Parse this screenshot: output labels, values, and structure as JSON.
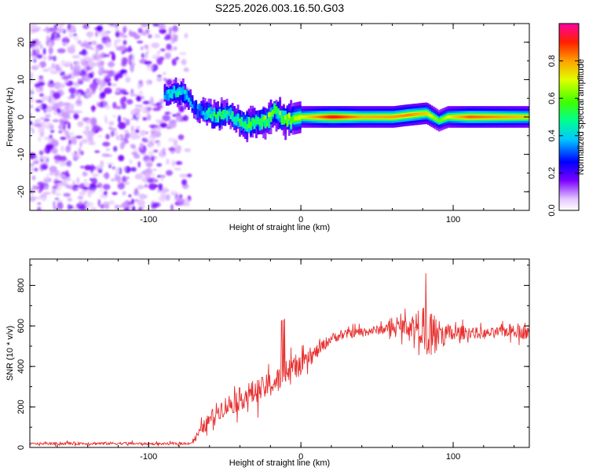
{
  "chart_data": [
    {
      "type": "heatmap",
      "title": "S225.2026.003.16.50.G03",
      "xlabel": "Height of straight line (km)",
      "ylabel": "Frequency (Hz)",
      "xlim": [
        -178,
        150
      ],
      "ylim": [
        -25,
        25
      ],
      "xticks": [
        -100,
        0,
        100
      ],
      "xtick_labels": [
        "-100",
        "0",
        "100"
      ],
      "yticks": [
        -20,
        -10,
        0,
        10,
        20
      ],
      "ytick_labels": [
        "-20",
        "-10",
        "0",
        "10",
        "20"
      ],
      "colorbar": {
        "label": "Normalized spectral amplitude",
        "range": [
          0,
          1
        ],
        "ticks": [
          0.0,
          0.2,
          0.4,
          0.6,
          0.8
        ],
        "tick_labels": [
          "0.0",
          "0.2",
          "0.4",
          "0.6",
          "0.8"
        ]
      },
      "noise_region_xmax": -73,
      "track": [
        {
          "x": -90,
          "f": 6,
          "a": 0.35
        },
        {
          "x": -82,
          "f": 6.5,
          "a": 0.45
        },
        {
          "x": -76,
          "f": 6,
          "a": 0.4
        },
        {
          "x": -70,
          "f": 2,
          "a": 0.3
        },
        {
          "x": -62,
          "f": 1,
          "a": 0.45
        },
        {
          "x": -55,
          "f": 0,
          "a": 0.5
        },
        {
          "x": -48,
          "f": 1,
          "a": 0.45
        },
        {
          "x": -42,
          "f": -1,
          "a": 0.5
        },
        {
          "x": -35,
          "f": -2,
          "a": 0.55
        },
        {
          "x": -28,
          "f": -1.5,
          "a": 0.55
        },
        {
          "x": -22,
          "f": -0.5,
          "a": 0.6
        },
        {
          "x": -18,
          "f": 2,
          "a": 0.55
        },
        {
          "x": -12,
          "f": -1,
          "a": 0.6
        },
        {
          "x": -6,
          "f": -0.5,
          "a": 0.65
        },
        {
          "x": 0,
          "f": 0,
          "a": 0.7
        },
        {
          "x": 20,
          "f": 0,
          "a": 0.92
        },
        {
          "x": 40,
          "f": 0,
          "a": 0.78
        },
        {
          "x": 60,
          "f": 0,
          "a": 0.8
        },
        {
          "x": 70,
          "f": 0.5,
          "a": 0.82
        },
        {
          "x": 82,
          "f": 1,
          "a": 0.75
        },
        {
          "x": 90,
          "f": -1,
          "a": 0.6
        },
        {
          "x": 96,
          "f": 0,
          "a": 0.7
        },
        {
          "x": 110,
          "f": 0,
          "a": 0.85
        },
        {
          "x": 130,
          "f": 0,
          "a": 0.8
        },
        {
          "x": 150,
          "f": 0,
          "a": 0.75
        }
      ]
    },
    {
      "type": "line",
      "xlabel": "Height of straight line (km)",
      "ylabel": "SNR (10 * v/v)",
      "xlim": [
        -178,
        150
      ],
      "ylim": [
        0,
        930
      ],
      "xticks": [
        -100,
        0,
        100
      ],
      "xtick_labels": [
        "-100",
        "0",
        "100"
      ],
      "yticks": [
        0,
        200,
        400,
        600,
        800
      ],
      "ytick_labels": [
        "0",
        "200",
        "400",
        "600",
        "800"
      ],
      "series": [
        {
          "name": "SNR",
          "color": "#e83030",
          "x": [
            -178,
            -150,
            -120,
            -100,
            -80,
            -72,
            -65,
            -55,
            -45,
            -35,
            -25,
            -15,
            -8,
            0,
            10,
            20,
            30,
            40,
            50,
            60,
            70,
            80,
            85,
            90,
            100,
            110,
            120,
            130,
            140,
            150
          ],
          "y": [
            18,
            20,
            20,
            18,
            18,
            22,
            90,
            180,
            220,
            260,
            290,
            330,
            380,
            400,
            470,
            540,
            560,
            570,
            580,
            590,
            600,
            600,
            560,
            560,
            560,
            570,
            560,
            570,
            580,
            560
          ],
          "spread": [
            10,
            15,
            15,
            12,
            12,
            15,
            60,
            90,
            110,
            120,
            120,
            130,
            120,
            90,
            70,
            50,
            45,
            45,
            45,
            60,
            90,
            180,
            300,
            150,
            80,
            60,
            50,
            50,
            70,
            60
          ]
        }
      ]
    }
  ]
}
